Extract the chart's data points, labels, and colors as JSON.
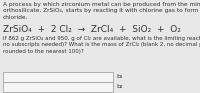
{
  "bg_color": "#e8e8e8",
  "text_color": "#333333",
  "paragraph1": "A process by which zirconium metal can be produced from the mineral zirconium (IV)\northosilicate, ZrSiO₄, starts by reacting it with chlorine gas to form zirconium (IV)\nchloride.",
  "equation": "ZrSiO₄  +  2 Cl₂  →  ZrCl₄  +  SiO₂  +  O₂",
  "paragraph2": "If 862 g ZrSiO₄ and 950. g of Cl₂ are available, what is the limiting reactant (blank 1,\nno subscripts needed)? What is the mass of ZrCl₄ (blank 2, no decimal places,\nrounded to the nearest 100)?",
  "box_color": "#f5f5f5",
  "box_border": "#999999",
  "label1": "b₁",
  "label2": "b₂",
  "p1_fontsize": 4.2,
  "eq_fontsize": 6.5,
  "p2_fontsize": 4.0,
  "label_fontsize": 4.5
}
